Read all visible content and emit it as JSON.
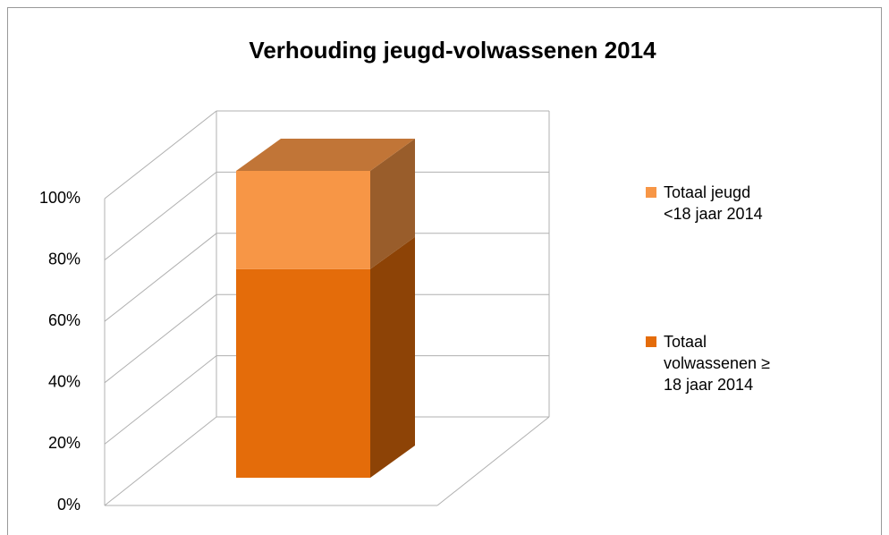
{
  "chart_data": {
    "type": "bar3d-stacked",
    "title": "Verhouding jeugd-volwassenen 2014",
    "categories": [
      null
    ],
    "series": [
      {
        "name": "Totaal volwassenen ≥ 18 jaar 2014",
        "color": "#e46c0a",
        "values": [
          68
        ]
      },
      {
        "name": "Totaal jeugd <18 jaar 2014",
        "color": "#f79646",
        "values": [
          32
        ]
      }
    ],
    "ylim": [
      0,
      100
    ],
    "yticks": [
      {
        "value": 0,
        "label": "0%"
      },
      {
        "value": 20,
        "label": "20%"
      },
      {
        "value": 40,
        "label": "40%"
      },
      {
        "value": 60,
        "label": "60%"
      },
      {
        "value": 80,
        "label": "80%"
      },
      {
        "value": 100,
        "label": "100%"
      }
    ],
    "grid": true,
    "legend": "right"
  }
}
